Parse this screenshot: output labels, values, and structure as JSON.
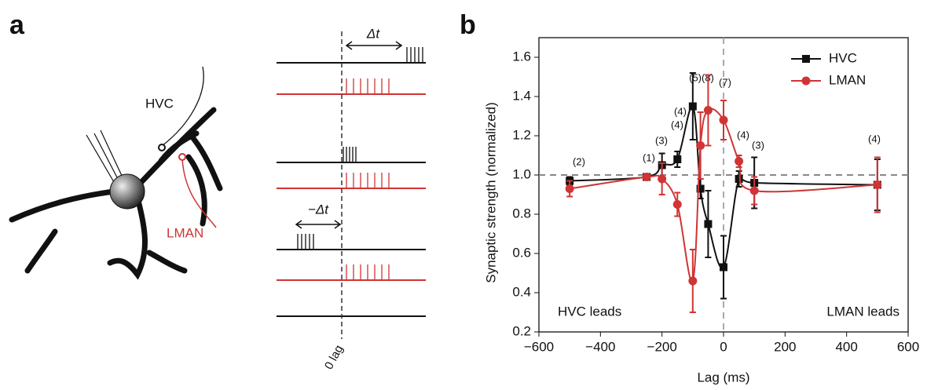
{
  "panel_labels": [
    "a",
    "b"
  ],
  "diagram": {
    "neuron_labels": [
      "HVC",
      "LMAN"
    ],
    "delta_t": "Δt",
    "minus_delta_t": "−Δt",
    "zero_lag": "0 lag"
  },
  "chart_data": {
    "type": "line",
    "x_label": "Lag (ms)",
    "y_label": "Synaptic strength (normalized)",
    "annotations": [
      "(2)",
      "(1)",
      "(3)",
      "(4)",
      "(5)(8)",
      "(4)",
      "(7)",
      "(4)",
      "(3)",
      "(4)"
    ],
    "region_labels": [
      "HVC leads",
      "LMAN leads"
    ],
    "xlim": [
      -600,
      600
    ],
    "xticks": [
      {
        "value": -600,
        "label": "−600"
      },
      {
        "value": -400,
        "label": "−400"
      },
      {
        "value": -200,
        "label": "−200"
      },
      0,
      200,
      400,
      600
    ],
    "ylim": [
      0.2,
      1.7
    ],
    "yticks": [
      0.2,
      0.4,
      0.6,
      0.8,
      {
        "value": 1,
        "label": "1.0"
      },
      1.2,
      1.4,
      1.6
    ],
    "reference_lines": {
      "x": 0,
      "y": 1
    },
    "legend": "upper right",
    "series": [
      {
        "name": "HVC",
        "color": "#111111",
        "marker": "square",
        "x": [
          -500,
          -250,
          -200,
          -150,
          -100,
          -75,
          -50,
          0,
          50,
          100,
          500
        ],
        "values": [
          0.97,
          0.99,
          1.05,
          1.08,
          1.35,
          0.93,
          0.75,
          0.53,
          0.98,
          0.96,
          0.95
        ],
        "errors": [
          0.02,
          0.01,
          0.06,
          0.04,
          0.17,
          0.05,
          0.17,
          0.16,
          0.04,
          0.13,
          0.13
        ]
      },
      {
        "name": "LMAN",
        "color": "#d03434",
        "marker": "circle",
        "x": [
          -500,
          -250,
          -200,
          -150,
          -100,
          -75,
          -50,
          0,
          50,
          100,
          500
        ],
        "values": [
          0.93,
          0.99,
          0.98,
          0.85,
          0.46,
          1.15,
          1.33,
          1.28,
          1.07,
          0.92,
          0.95
        ],
        "errors": [
          0.04,
          0.01,
          0.08,
          0.06,
          0.16,
          0.17,
          0.18,
          0.1,
          0.03,
          0.07,
          0.14
        ]
      }
    ]
  }
}
